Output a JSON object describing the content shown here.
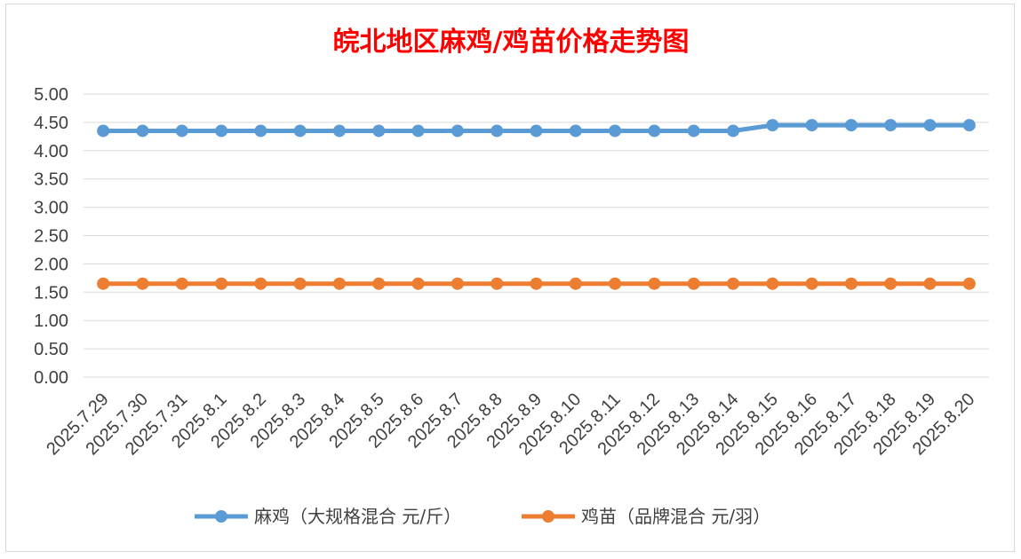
{
  "chart_data": {
    "type": "line",
    "title": "皖北地区麻鸡/鸡苗价格走势图",
    "xlabel": "",
    "ylabel": "",
    "ylim": [
      0,
      5
    ],
    "yticks": [
      "0.00",
      "0.50",
      "1.00",
      "1.50",
      "2.00",
      "2.50",
      "3.00",
      "3.50",
      "4.00",
      "4.50",
      "5.00"
    ],
    "grid": true,
    "legend_position": "bottom",
    "categories": [
      "2025.7.29",
      "2025.7.30",
      "2025.7.31",
      "2025.8.1",
      "2025.8.2",
      "2025.8.3",
      "2025.8.4",
      "2025.8.5",
      "2025.8.6",
      "2025.8.7",
      "2025.8.8",
      "2025.8.9",
      "2025.8.10",
      "2025.8.11",
      "2025.8.12",
      "2025.8.13",
      "2025.8.14",
      "2025.8.15",
      "2025.8.16",
      "2025.8.17",
      "2025.8.18",
      "2025.8.19",
      "2025.8.20"
    ],
    "series": [
      {
        "name": "麻鸡（大规格混合 元/斤）",
        "color": "#5b9bd5",
        "values": [
          4.35,
          4.35,
          4.35,
          4.35,
          4.35,
          4.35,
          4.35,
          4.35,
          4.35,
          4.35,
          4.35,
          4.35,
          4.35,
          4.35,
          4.35,
          4.35,
          4.35,
          4.45,
          4.45,
          4.45,
          4.45,
          4.45,
          4.45
        ]
      },
      {
        "name": "鸡苗（品牌混合 元/羽）",
        "color": "#ed7d31",
        "values": [
          1.65,
          1.65,
          1.65,
          1.65,
          1.65,
          1.65,
          1.65,
          1.65,
          1.65,
          1.65,
          1.65,
          1.65,
          1.65,
          1.65,
          1.65,
          1.65,
          1.65,
          1.65,
          1.65,
          1.65,
          1.65,
          1.65,
          1.65
        ]
      }
    ]
  }
}
